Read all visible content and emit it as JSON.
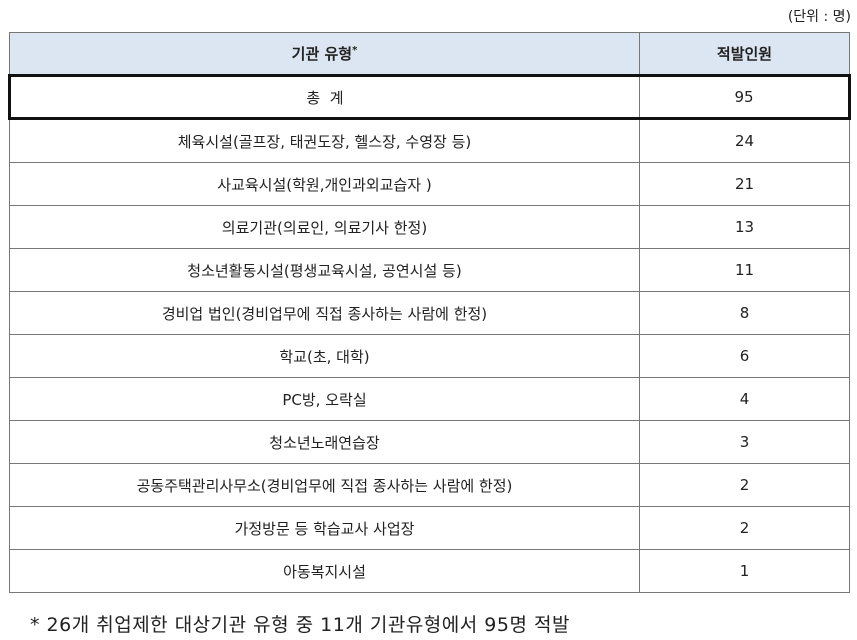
{
  "unit_note": "(단위 : 명)",
  "header": {
    "type": "기관 유형",
    "type_mark": "*",
    "count": "적발인원"
  },
  "total": {
    "label": "총  계",
    "value": "95"
  },
  "rows": [
    {
      "label": "체육시설(골프장, 태권도장, 헬스장, 수영장 등)",
      "value": "24"
    },
    {
      "label": "사교육시설(학원,개인과외교습자 )",
      "value": "21"
    },
    {
      "label": "의료기관(의료인, 의료기사 한정)",
      "value": "13"
    },
    {
      "label": "청소년활동시설(평생교육시설, 공연시설 등)",
      "value": "11"
    },
    {
      "label": "경비업 법인(경비업무에 직접 종사하는 사람에 한정)",
      "value": "8"
    },
    {
      "label": "학교(초, 대학)",
      "value": "6"
    },
    {
      "label": "PC방, 오락실",
      "value": "4"
    },
    {
      "label": "청소년노래연습장",
      "value": "3"
    },
    {
      "label": "공동주택관리사무소(경비업무에 직접 종사하는 사람에 한정)",
      "value": "2"
    },
    {
      "label": "가정방문 등 학습교사 사업장",
      "value": "2"
    },
    {
      "label": "아동복지시설",
      "value": "1"
    }
  ],
  "footnote": "* 26개 취업제한 대상기관 유형 중 11개 기관유형에서 95명 적발",
  "colors": {
    "header_bg": "#dce6f2"
  }
}
